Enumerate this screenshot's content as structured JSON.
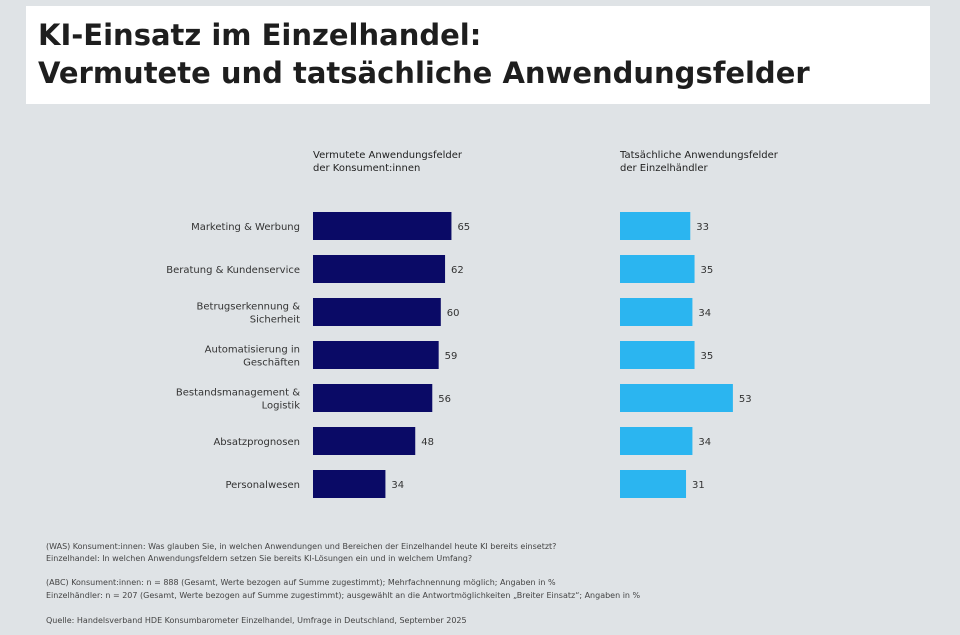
{
  "title": {
    "line1": "KI-Einsatz im Einzelhandel:",
    "line2": "Vermutete und tatsächliche Anwendungsfelder"
  },
  "chart_data": {
    "type": "bar",
    "orientation": "horizontal",
    "categories": [
      "Marketing & Werbung",
      "Beratung & Kundenservice",
      "Betrugserkennung & Sicherheit",
      "Automatisierung in Geschäften",
      "Bestandsmanagement & Logistik",
      "Absatzprognosen",
      "Personalwesen"
    ],
    "series": [
      {
        "name": "Vermutete Anwendungsfelder der Konsument:innen",
        "color": "#0a0a66",
        "values": [
          65,
          62,
          60,
          59,
          56,
          48,
          34
        ]
      },
      {
        "name": "Tatsächliche Anwendungsfelder der Einzelhändler",
        "color": "#2bb5f0",
        "values": [
          33,
          35,
          34,
          35,
          53,
          34,
          31
        ]
      }
    ]
  },
  "footnotes": {
    "line1": "(WAS) Konsument:innen: Was glauben Sie, in welchen Anwendungen und Bereichen der Einzelhandel heute KI bereits einsetzt?",
    "line2": "Einzelhandel: In welchen Anwendungsfeldern setzen Sie bereits KI-Lösungen ein und in welchem Umfang?",
    "line3": "(ABC) Konsument:innen: n = 888 (Gesamt, Werte bezogen auf Summe zugestimmt); Mehrfachnennung möglich; Angaben in %",
    "line4": "Einzelhändler: n = 207 (Gesamt, Werte bezogen auf Summe zugestimmt); ausgewählt an die Antwortmöglichkeiten „Breiter Einsatz“; Angaben in %",
    "line5": "Quelle: Handelsverband HDE Konsumbarometer Einzelhandel, Umfrage in Deutschland, September 2025"
  }
}
